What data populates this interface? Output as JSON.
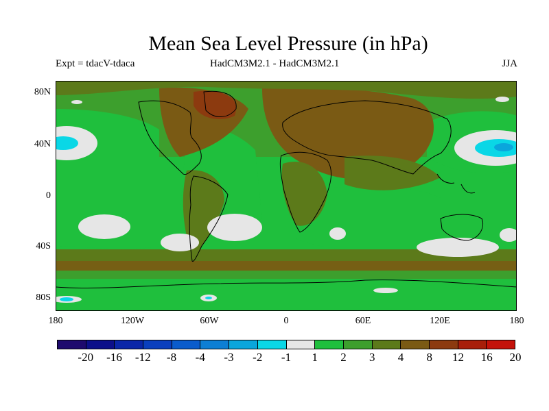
{
  "title": "Mean Sea Level Pressure (in hPa)",
  "experiment": "Expt = tdacV-tdaca",
  "model": "HadCM3M2.1 - HadCM3M2.1",
  "season": "JJA",
  "lat_labels": [
    "80N",
    "40N",
    "0",
    "40S",
    "80S"
  ],
  "lon_labels": [
    "180",
    "120W",
    "60W",
    "0",
    "60E",
    "120E",
    "180"
  ],
  "colorbar": {
    "labels": [
      "-20",
      "-16",
      "-12",
      "-8",
      "-4",
      "-3",
      "-2",
      "-1",
      "1",
      "2",
      "3",
      "4",
      "8",
      "12",
      "16",
      "20"
    ],
    "colors": [
      "#1e0a6e",
      "#0c0f8a",
      "#0a26a8",
      "#0a3fbe",
      "#0a5ccc",
      "#0d7fd4",
      "#0aa6dc",
      "#0ad7e6",
      "#e6e6e6",
      "#1fbf3d",
      "#3d9f2d",
      "#5c7a1a",
      "#7a5a14",
      "#8c3a0f",
      "#a81f0a",
      "#c4120a"
    ]
  },
  "legend_colors": {
    "white": "#e6e6e6",
    "light_blue": "#0ad7e6",
    "mid_blue": "#0aa6dc",
    "bright_green": "#1fbf3d",
    "green": "#3d9f2d",
    "olive": "#5c7a1a",
    "brown": "#7a5a14",
    "rust": "#8c3a0f",
    "red": "#a81f0a"
  }
}
